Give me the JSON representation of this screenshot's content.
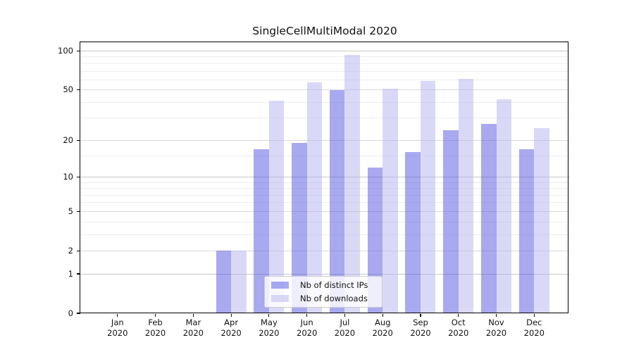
{
  "chart_data": {
    "type": "bar",
    "title": "SingleCellMultiModal 2020",
    "categories": [
      "Jan\n2020",
      "Feb\n2020",
      "Mar\n2020",
      "Apr\n2020",
      "May\n2020",
      "Jun\n2020",
      "Jul\n2020",
      "Aug\n2020",
      "Sep\n2020",
      "Oct\n2020",
      "Nov\n2020",
      "Dec\n2020"
    ],
    "series": [
      {
        "name": "Nb of distinct IPs",
        "color": "rgba(83,83,225,0.5)",
        "values": [
          0,
          0,
          0,
          2,
          17,
          19,
          50,
          12,
          16,
          24,
          27,
          17
        ]
      },
      {
        "name": "Nb of downloads",
        "color": "rgba(180,180,240,0.5)",
        "values": [
          0,
          0,
          0,
          2,
          41,
          57,
          94,
          51,
          59,
          61,
          42,
          25
        ]
      }
    ],
    "yscale": "log1p",
    "ylim": [
      0,
      118
    ],
    "yticks": [
      0,
      1,
      2,
      5,
      10,
      20,
      50,
      100
    ],
    "minor_yticks": [
      3,
      4,
      6,
      7,
      8,
      9,
      15,
      30,
      40,
      60,
      70,
      80,
      90
    ],
    "xlabel": "",
    "ylabel": "",
    "grid": "horizontal",
    "grid_colors": {
      "power10": "#c7c7c7",
      "labeled": "#dadada",
      "minor": "#ededed"
    },
    "legend": {
      "position": "lower center"
    }
  }
}
